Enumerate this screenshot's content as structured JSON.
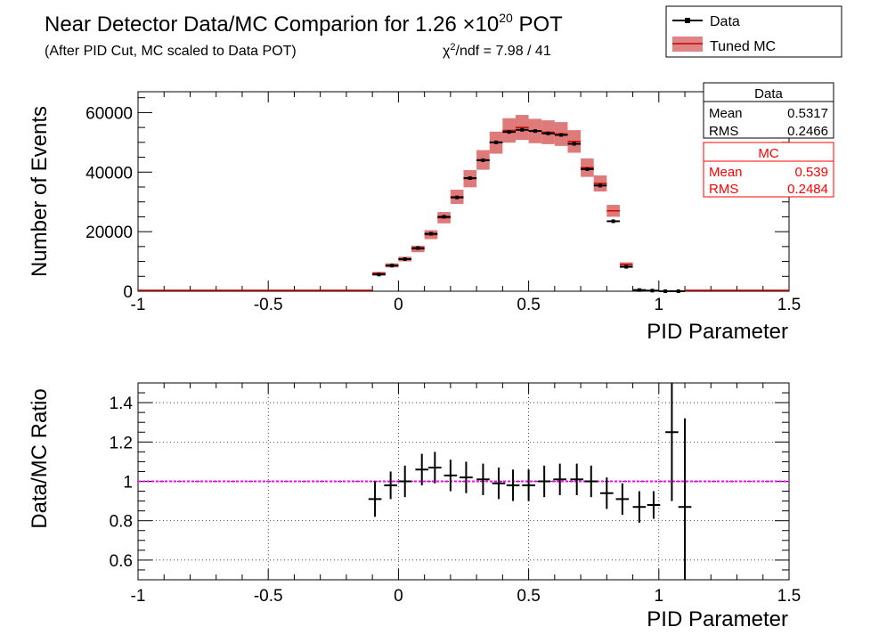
{
  "title": {
    "main": "Near Detector Data/MC Comparion for 1.26 ×10",
    "exponent": "20",
    "suffix": " POT",
    "subtitle": "(After PID Cut, MC scaled to Data POT)",
    "chi2_symbol": "χ",
    "chi2_exp": "2",
    "chi2_rest": "/ndf = 7.98 / 41"
  },
  "legend": {
    "data_label": "Data",
    "mc_label": "Tuned MC"
  },
  "stats": {
    "data": {
      "title": "Data",
      "mean_label": "Mean",
      "mean": "0.5317",
      "rms_label": "RMS",
      "rms": "0.2466"
    },
    "mc": {
      "title": "MC",
      "mean_label": "Mean",
      "mean": "0.539",
      "rms_label": "RMS",
      "rms": "0.2484"
    }
  },
  "colors": {
    "data": "#000000",
    "mc_line": "#cc0000",
    "mc_band": "#cc3333",
    "stats_mc_text": "#ff0000",
    "unity_line": "#ff00ff"
  },
  "chart_data": [
    {
      "type": "line",
      "panel": "distribution",
      "xlabel": "PID Parameter",
      "ylabel": "Number of Events",
      "xlim": [
        -1,
        1.5
      ],
      "ylim": [
        0,
        67000
      ],
      "xticks": [
        -1,
        -0.5,
        0,
        0.5,
        1,
        1.5
      ],
      "xtick_labels": [
        "-1",
        "-0.5",
        "0",
        "0.5",
        "1",
        "1.5"
      ],
      "yticks": [
        0,
        20000,
        40000,
        60000
      ],
      "ytick_labels": [
        "0",
        "20000",
        "40000",
        "60000"
      ],
      "bin_width": 0.05,
      "x": [
        -0.075,
        -0.025,
        0.025,
        0.075,
        0.125,
        0.175,
        0.225,
        0.275,
        0.325,
        0.375,
        0.425,
        0.475,
        0.525,
        0.575,
        0.625,
        0.675,
        0.725,
        0.775,
        0.825,
        0.875,
        0.925,
        0.975,
        1.025,
        1.075
      ],
      "series": [
        {
          "name": "Data",
          "values": [
            5600,
            8600,
            10800,
            14500,
            19300,
            25000,
            31500,
            38000,
            44000,
            50000,
            53500,
            54200,
            53800,
            53000,
            52500,
            49500,
            41000,
            35500,
            23500,
            8200,
            400,
            200,
            0,
            0
          ]
        },
        {
          "name": "Tuned MC",
          "values": [
            6000,
            8700,
            10800,
            14200,
            19000,
            24700,
            31700,
            37800,
            44100,
            49900,
            54000,
            55000,
            53800,
            53400,
            52800,
            50300,
            41500,
            36200,
            27000,
            9000,
            300,
            150,
            0,
            0
          ],
          "band_half_width": [
            500,
            700,
            800,
            1100,
            1500,
            1900,
            2400,
            2900,
            3300,
            3700,
            4100,
            4200,
            4100,
            4000,
            4000,
            3800,
            3100,
            2700,
            2000,
            700,
            100,
            50,
            0,
            0
          ]
        }
      ]
    },
    {
      "type": "scatter",
      "panel": "ratio",
      "xlabel": "PID Parameter",
      "ylabel": "Data/MC Ratio",
      "xlim": [
        -1,
        1.5
      ],
      "ylim": [
        0.5,
        1.5
      ],
      "xticks": [
        -1,
        -0.5,
        0,
        0.5,
        1,
        1.5
      ],
      "xtick_labels": [
        "-1",
        "-0.5",
        "0",
        "0.5",
        "1",
        "1.5"
      ],
      "yticks": [
        0.6,
        0.8,
        1.0,
        1.2,
        1.4
      ],
      "ytick_labels": [
        "0.6",
        "0.8",
        "1",
        "1.2",
        "1.4"
      ],
      "grid": true,
      "reference_line": 1.0,
      "series": [
        {
          "name": "Data/MC",
          "x": [
            -0.09,
            -0.03,
            0.025,
            0.09,
            0.14,
            0.2,
            0.26,
            0.325,
            0.385,
            0.44,
            0.5,
            0.56,
            0.62,
            0.685,
            0.74,
            0.8,
            0.86,
            0.925,
            0.98,
            1.05,
            1.1
          ],
          "y": [
            0.91,
            0.98,
            1.0,
            1.06,
            1.07,
            1.03,
            1.02,
            1.01,
            0.99,
            0.98,
            0.98,
            1.0,
            1.01,
            1.01,
            1.0,
            0.94,
            0.91,
            0.87,
            0.88,
            1.25,
            0.87
          ],
          "yerr": [
            0.09,
            0.07,
            0.08,
            0.08,
            0.08,
            0.08,
            0.08,
            0.08,
            0.08,
            0.08,
            0.08,
            0.08,
            0.08,
            0.08,
            0.08,
            0.08,
            0.08,
            0.08,
            0.07,
            0.35,
            0.45
          ]
        }
      ]
    }
  ]
}
